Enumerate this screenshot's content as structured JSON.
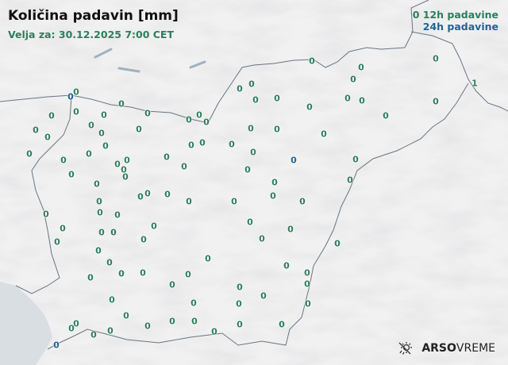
{
  "title": "Količina padavin [mm]",
  "valid_label": "Velja za: 30.12.2025 7:00 CET",
  "legend": {
    "sample_value": "0",
    "h12": "12h padavine",
    "h24": "24h padavine"
  },
  "colors": {
    "h12": "#2e7d5b",
    "h24": "#1f6496",
    "border": "#6a7480",
    "sea": "#d9dee3"
  },
  "logo": {
    "bold": "ARSO",
    "light": "VREME",
    "icon": "sun-rain-icon"
  },
  "stations": [
    {
      "v": "0",
      "t": "24"
    },
    {
      "v": "0",
      "t": "24"
    },
    {
      "v": "0",
      "t": "24"
    },
    {
      "v": "1",
      "t": "12"
    },
    {
      "v": "0",
      "t": "12"
    },
    {
      "v": "0",
      "t": "12"
    },
    {
      "v": "0",
      "t": "12"
    },
    {
      "v": "0",
      "t": "12"
    },
    {
      "v": "0",
      "t": "12"
    },
    {
      "v": "0",
      "t": "12"
    },
    {
      "v": "0",
      "t": "12"
    },
    {
      "v": "0",
      "t": "12"
    },
    {
      "v": "0",
      "t": "12"
    },
    {
      "v": "0",
      "t": "12"
    },
    {
      "v": "0",
      "t": "12"
    },
    {
      "v": "0",
      "t": "12"
    },
    {
      "v": "0",
      "t": "12"
    },
    {
      "v": "0",
      "t": "12"
    },
    {
      "v": "0",
      "t": "12"
    },
    {
      "v": "0",
      "t": "12"
    },
    {
      "v": "0",
      "t": "12"
    },
    {
      "v": "0",
      "t": "12"
    },
    {
      "v": "0",
      "t": "12"
    },
    {
      "v": "0",
      "t": "12"
    },
    {
      "v": "0",
      "t": "12"
    },
    {
      "v": "0",
      "t": "12"
    },
    {
      "v": "0",
      "t": "12"
    },
    {
      "v": "0",
      "t": "12"
    },
    {
      "v": "0",
      "t": "12"
    },
    {
      "v": "0",
      "t": "12"
    },
    {
      "v": "0",
      "t": "12"
    },
    {
      "v": "0",
      "t": "12"
    },
    {
      "v": "0",
      "t": "12"
    },
    {
      "v": "0",
      "t": "12"
    },
    {
      "v": "0",
      "t": "12"
    },
    {
      "v": "0",
      "t": "12"
    },
    {
      "v": "0",
      "t": "12"
    },
    {
      "v": "0",
      "t": "12"
    },
    {
      "v": "0",
      "t": "12"
    },
    {
      "v": "0",
      "t": "12"
    },
    {
      "v": "0",
      "t": "12"
    },
    {
      "v": "0",
      "t": "12"
    },
    {
      "v": "0",
      "t": "12"
    },
    {
      "v": "0",
      "t": "12"
    },
    {
      "v": "0",
      "t": "12"
    },
    {
      "v": "0",
      "t": "12"
    },
    {
      "v": "0",
      "t": "12"
    },
    {
      "v": "0",
      "t": "12"
    },
    {
      "v": "0",
      "t": "12"
    },
    {
      "v": "0",
      "t": "12"
    },
    {
      "v": "0",
      "t": "12"
    },
    {
      "v": "0",
      "t": "12"
    },
    {
      "v": "0",
      "t": "12"
    },
    {
      "v": "0",
      "t": "12"
    },
    {
      "v": "0",
      "t": "12"
    },
    {
      "v": "0",
      "t": "12"
    },
    {
      "v": "0",
      "t": "12"
    },
    {
      "v": "0",
      "t": "12"
    },
    {
      "v": "0",
      "t": "12"
    },
    {
      "v": "0",
      "t": "12"
    },
    {
      "v": "0",
      "t": "12"
    },
    {
      "v": "0",
      "t": "12"
    },
    {
      "v": "0",
      "t": "12"
    },
    {
      "v": "0",
      "t": "12"
    },
    {
      "v": "0",
      "t": "12"
    },
    {
      "v": "0",
      "t": "12"
    },
    {
      "v": "0",
      "t": "12"
    },
    {
      "v": "0",
      "t": "12"
    },
    {
      "v": "0",
      "t": "12"
    },
    {
      "v": "0",
      "t": "12"
    },
    {
      "v": "0",
      "t": "12"
    },
    {
      "v": "0",
      "t": "12"
    },
    {
      "v": "0",
      "t": "12"
    },
    {
      "v": "0",
      "t": "12"
    },
    {
      "v": "0",
      "t": "12"
    },
    {
      "v": "0",
      "t": "12"
    },
    {
      "v": "0",
      "t": "12"
    },
    {
      "v": "0",
      "t": "12"
    },
    {
      "v": "0",
      "t": "12"
    },
    {
      "v": "0",
      "t": "12"
    },
    {
      "v": "0",
      "t": "12"
    },
    {
      "v": "0",
      "t": "12"
    },
    {
      "v": "0",
      "t": "12"
    },
    {
      "v": "0",
      "t": "12"
    },
    {
      "v": "0",
      "t": "12"
    },
    {
      "v": "0",
      "t": "12"
    },
    {
      "v": "0",
      "t": "12"
    },
    {
      "v": "0",
      "t": "12"
    },
    {
      "v": "0",
      "t": "12"
    },
    {
      "v": "0",
      "t": "12"
    },
    {
      "v": "0",
      "t": "12"
    },
    {
      "v": "0",
      "t": "12"
    },
    {
      "v": "0",
      "t": "12"
    },
    {
      "v": "0",
      "t": "12"
    },
    {
      "v": "0",
      "t": "12"
    },
    {
      "v": "0",
      "t": "12"
    },
    {
      "v": "0",
      "t": "12"
    },
    {
      "v": "0",
      "t": "12"
    },
    {
      "v": "0",
      "t": "12"
    },
    {
      "v": "0",
      "t": "12"
    },
    {
      "v": "0",
      "t": "12"
    },
    {
      "v": "0",
      "t": "12"
    },
    {
      "v": "0",
      "t": "12"
    },
    {
      "v": "0",
      "t": "12"
    },
    {
      "v": "0",
      "t": "12"
    },
    {
      "v": "0",
      "t": "12"
    }
  ]
}
